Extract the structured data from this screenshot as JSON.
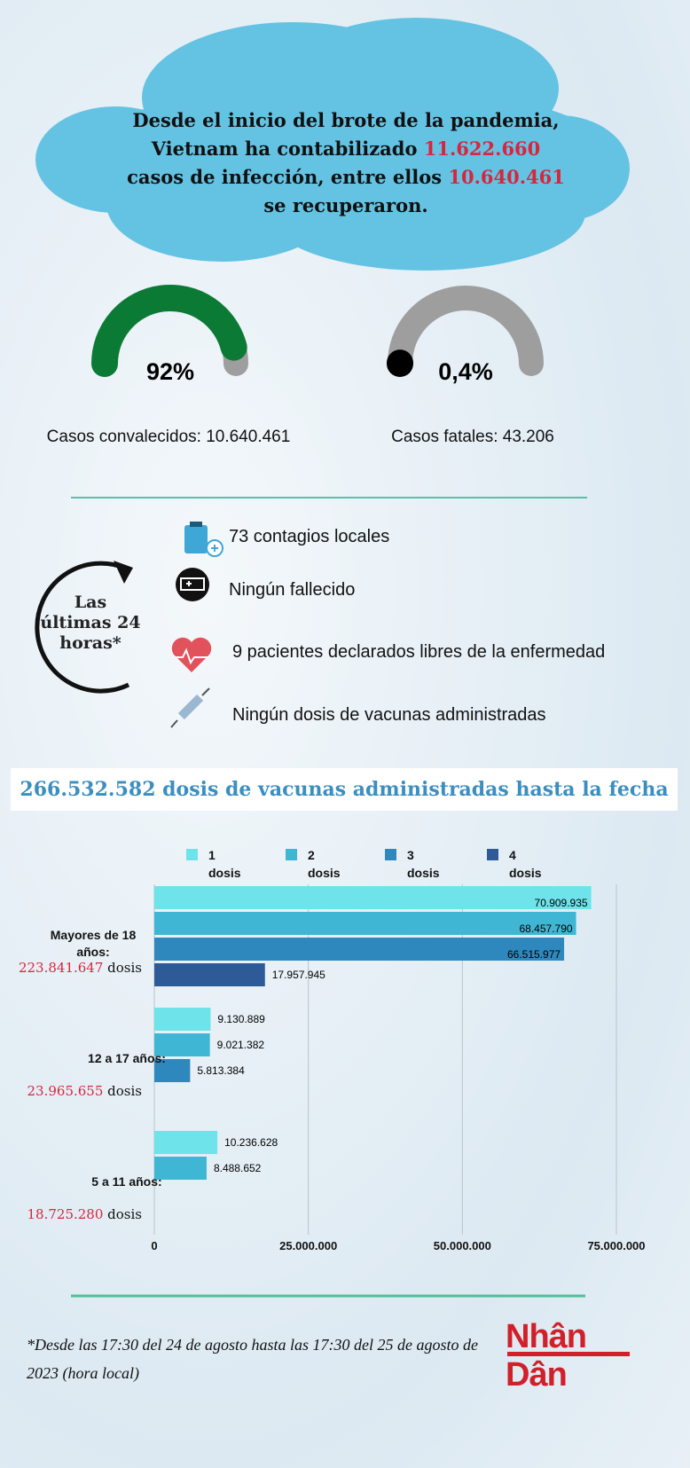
{
  "header": {
    "line1": "Desde el inicio del brote de la pandemia,",
    "line2": "Vietnam ha contabilizado",
    "cases": "11.622.660",
    "line3": "casos de infección, entre ellos",
    "recovered": "10.640.461",
    "line4": "se recuperaron."
  },
  "gauges": [
    {
      "value": 92,
      "value_label": "92%",
      "color": "#0b7a35",
      "caption": "Casos convalecidos: 10.640.461"
    },
    {
      "value": 0.4,
      "value_label": "0,4%",
      "color": "#000000",
      "caption": "Casos fatales: 43.206"
    }
  ],
  "recent": {
    "title": [
      "Las",
      "últimas 24",
      "horas*"
    ],
    "items": [
      "73 contagios locales",
      "Ningún fallecido",
      "9 pacientes declarados libres de la enfermedad",
      "Ningún dosis de vacunas administradas"
    ]
  },
  "banner": "266.532.582 dosis de vacunas administradas hasta la fecha",
  "chart_data": {
    "type": "hbar",
    "categories": [
      "Mayores de 18 años:",
      "12 a 17 años:",
      "5 a 11 años:"
    ],
    "group_totals": [
      "223.841.647",
      "23.965.655",
      "18.725.280"
    ],
    "totals_unit": "dosis",
    "series": [
      {
        "name": "1 dosis",
        "color": "#6ee3ea",
        "values": [
          70909935,
          9130889,
          10236628
        ],
        "value_labels": [
          "70.909.935",
          "9.130.889",
          "10.236.628"
        ]
      },
      {
        "name": "2 dosis",
        "color": "#40b6d5",
        "values": [
          68457790,
          9021382,
          8488652
        ],
        "value_labels": [
          "68.457.790",
          "9.021.382",
          "8.488.652"
        ]
      },
      {
        "name": "3 dosis",
        "color": "#2f88bd",
        "values": [
          66515977,
          5813384,
          null
        ],
        "value_labels": [
          "66.515.977",
          "5.813.384",
          null
        ]
      },
      {
        "name": "4 dosis",
        "color": "#2e5b97",
        "values": [
          17957945,
          null,
          null
        ],
        "value_labels": [
          "17.957.945",
          null,
          null
        ]
      }
    ],
    "xlim": [
      0,
      75000000
    ],
    "xticks": [
      0,
      {
        "value": 25000000,
        "label": "25.000.000"
      },
      {
        "value": 50000000,
        "label": "50.000.000"
      },
      {
        "value": 75000000,
        "label": "75.000.000"
      }
    ],
    "grid": true
  },
  "footnote": "*Desde las 17:30 del 24 de agosto hasta las 17:30 del 25 de agosto de 2023 (hora local)",
  "logo": "Nhân Dân"
}
